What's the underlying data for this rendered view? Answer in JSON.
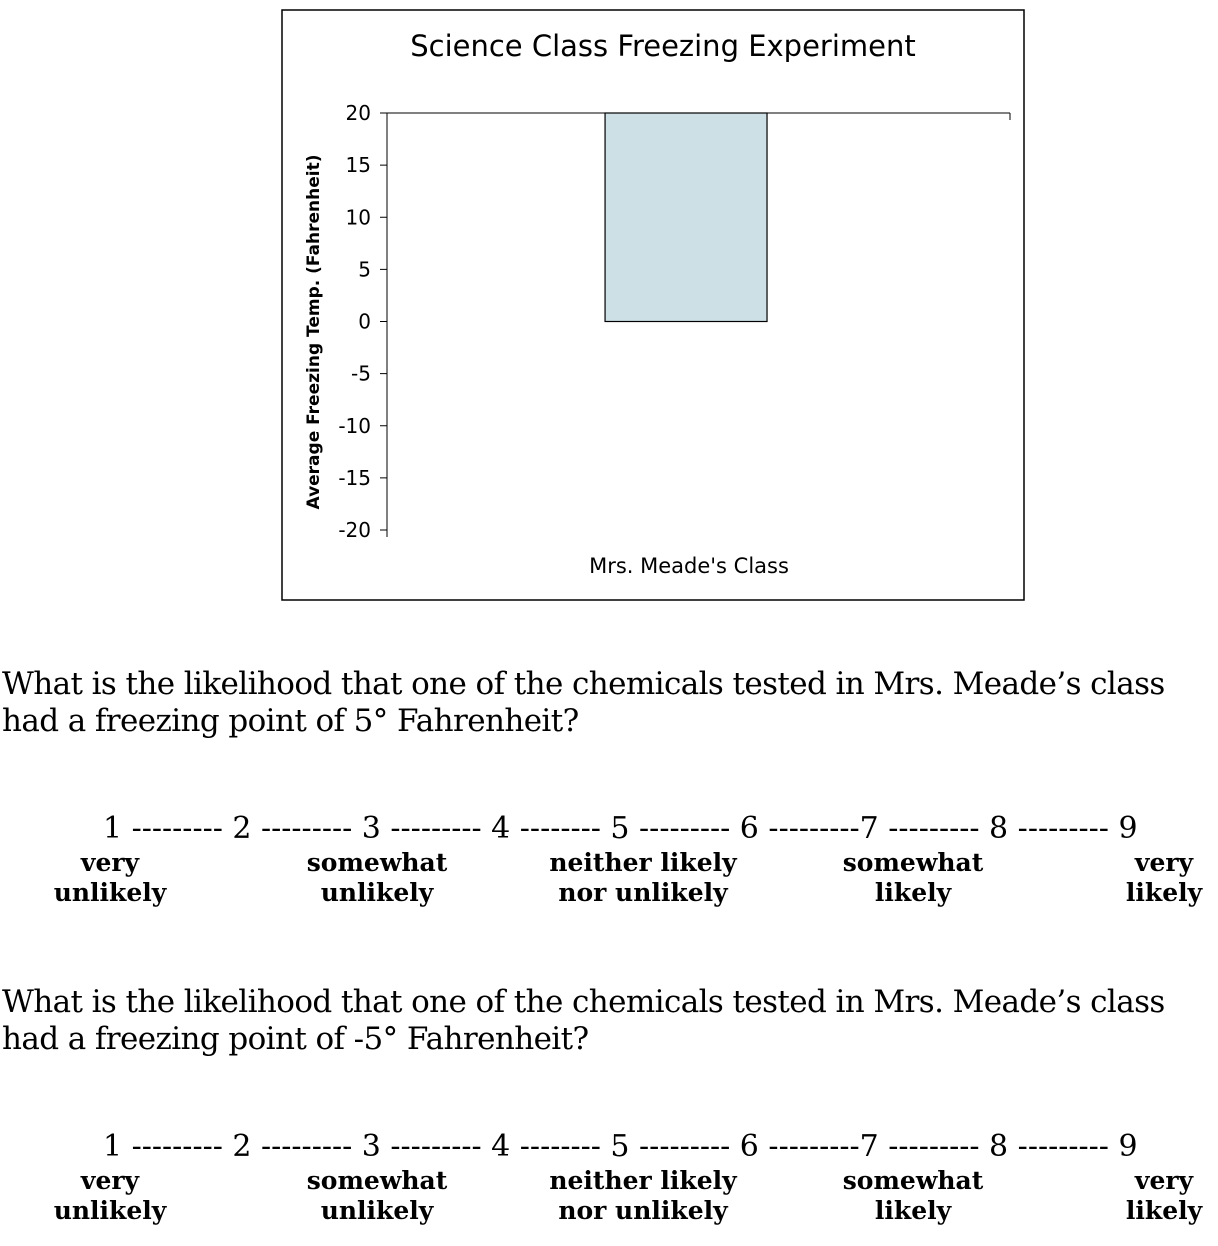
{
  "chart_data": {
    "type": "bar",
    "title": "Science Class Freezing Experiment",
    "ylabel": "Average Freezing Temp. (Fahrenheit)",
    "categories": [
      "Mrs. Meade's Class"
    ],
    "bar_range": [
      0,
      20
    ],
    "ylim": [
      -20,
      20
    ],
    "yticks": [
      20,
      15,
      10,
      5,
      0,
      -5,
      -10,
      -15,
      -20
    ],
    "ytick_labels": [
      "20",
      "15",
      "10",
      "5",
      "0",
      "-5",
      "-10",
      "-15",
      "-20"
    ],
    "grid": false,
    "legend": "none",
    "colors": {
      "bar": "#cde0e6",
      "outline": "#000000"
    }
  },
  "questions": [
    {
      "text": "What is the likelihood that one of the chemicals tested in Mrs. Meade’s class had a freezing point of 5° Fahrenheit?",
      "scale": "1 --------- 2 --------- 3 --------- 4 -------- 5 --------- 6 ---------7 --------- 8 --------- 9",
      "anchors": [
        {
          "line1": "very",
          "line2": "unlikely"
        },
        {
          "line1": "somewhat",
          "line2": "unlikely"
        },
        {
          "line1": "neither likely",
          "line2": "nor unlikely"
        },
        {
          "line1": "somewhat",
          "line2": "likely"
        },
        {
          "line1": "very",
          "line2": "likely"
        }
      ]
    },
    {
      "text": "What is the likelihood that one of the chemicals tested in Mrs. Meade’s class had a freezing point of -5° Fahrenheit?",
      "scale": "1 --------- 2 --------- 3 --------- 4 -------- 5 --------- 6 ---------7 --------- 8 --------- 9",
      "anchors": [
        {
          "line1": "very",
          "line2": "unlikely"
        },
        {
          "line1": "somewhat",
          "line2": "unlikely"
        },
        {
          "line1": "neither likely",
          "line2": "nor unlikely"
        },
        {
          "line1": "somewhat",
          "line2": "likely"
        },
        {
          "line1": "very",
          "line2": "likely"
        }
      ]
    }
  ]
}
